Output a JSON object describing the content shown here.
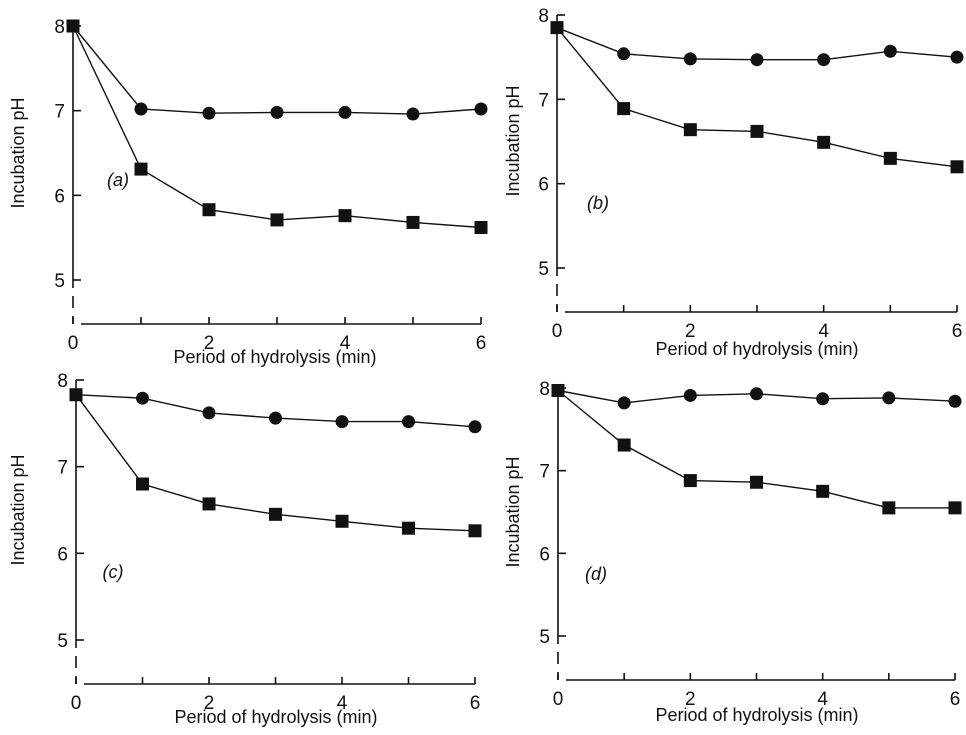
{
  "chart_data": [
    {
      "type": "line",
      "panel_label": "(a)",
      "xlabel": "Period of hydrolysis (min)",
      "ylabel": "Incubation pH",
      "xlim": [
        0,
        6
      ],
      "ylim": [
        5,
        8
      ],
      "x_ticks": [
        "0",
        "2",
        "4",
        "6"
      ],
      "y_ticks": [
        "5",
        "6",
        "7",
        "8"
      ],
      "series": [
        {
          "marker": "circle",
          "x": [
            0,
            1,
            2,
            3,
            4,
            5,
            6
          ],
          "values": [
            8.0,
            7.02,
            6.97,
            6.98,
            6.98,
            6.96,
            7.02
          ]
        },
        {
          "marker": "square",
          "x": [
            0,
            1,
            2,
            3,
            4,
            5,
            6
          ],
          "values": [
            8.0,
            6.31,
            5.83,
            5.71,
            5.76,
            5.68,
            5.62
          ]
        }
      ]
    },
    {
      "type": "line",
      "panel_label": "(b)",
      "xlabel": "Period of hydrolysis (min)",
      "ylabel": "Incubation pH",
      "xlim": [
        0,
        6
      ],
      "ylim": [
        5,
        8
      ],
      "x_ticks": [
        "0",
        "2",
        "4",
        "6"
      ],
      "y_ticks": [
        "5",
        "6",
        "7",
        "8"
      ],
      "series": [
        {
          "marker": "circle",
          "x": [
            0,
            1,
            2,
            3,
            4,
            5,
            6
          ],
          "values": [
            7.85,
            7.54,
            7.48,
            7.47,
            7.47,
            7.57,
            7.5
          ]
        },
        {
          "marker": "square",
          "x": [
            0,
            1,
            2,
            3,
            4,
            5,
            6
          ],
          "values": [
            7.85,
            6.89,
            6.64,
            6.62,
            6.49,
            6.3,
            6.2
          ]
        }
      ]
    },
    {
      "type": "line",
      "panel_label": "(c)",
      "xlabel": "Period of hydrolysis (min)",
      "ylabel": "Incubation pH",
      "xlim": [
        0,
        6
      ],
      "ylim": [
        5,
        8
      ],
      "x_ticks": [
        "0",
        "2",
        "4",
        "6"
      ],
      "y_ticks": [
        "5",
        "6",
        "7",
        "8"
      ],
      "series": [
        {
          "marker": "circle",
          "x": [
            0,
            1,
            2,
            3,
            4,
            5,
            6
          ],
          "values": [
            7.83,
            7.79,
            7.62,
            7.56,
            7.52,
            7.52,
            7.46
          ]
        },
        {
          "marker": "square",
          "x": [
            0,
            1,
            2,
            3,
            4,
            5,
            6
          ],
          "values": [
            7.83,
            6.8,
            6.57,
            6.45,
            6.37,
            6.29,
            6.26
          ]
        }
      ]
    },
    {
      "type": "line",
      "panel_label": "(d)",
      "xlabel": "Period of hydrolysis (min)",
      "ylabel": "Incubation pH",
      "xlim": [
        0,
        6
      ],
      "ylim": [
        5,
        8
      ],
      "x_ticks": [
        "0",
        "2",
        "4",
        "6"
      ],
      "y_ticks": [
        "5",
        "6",
        "7",
        "8"
      ],
      "series": [
        {
          "marker": "circle",
          "x": [
            0,
            1,
            2,
            3,
            4,
            5,
            6
          ],
          "values": [
            7.97,
            7.82,
            7.91,
            7.93,
            7.87,
            7.88,
            7.84
          ]
        },
        {
          "marker": "square",
          "x": [
            0,
            1,
            2,
            3,
            4,
            5,
            6
          ],
          "values": [
            7.97,
            7.31,
            6.88,
            6.86,
            6.75,
            6.55,
            6.55
          ]
        }
      ]
    }
  ],
  "colors": {
    "ink": "#111111",
    "background": "#ffffff"
  }
}
